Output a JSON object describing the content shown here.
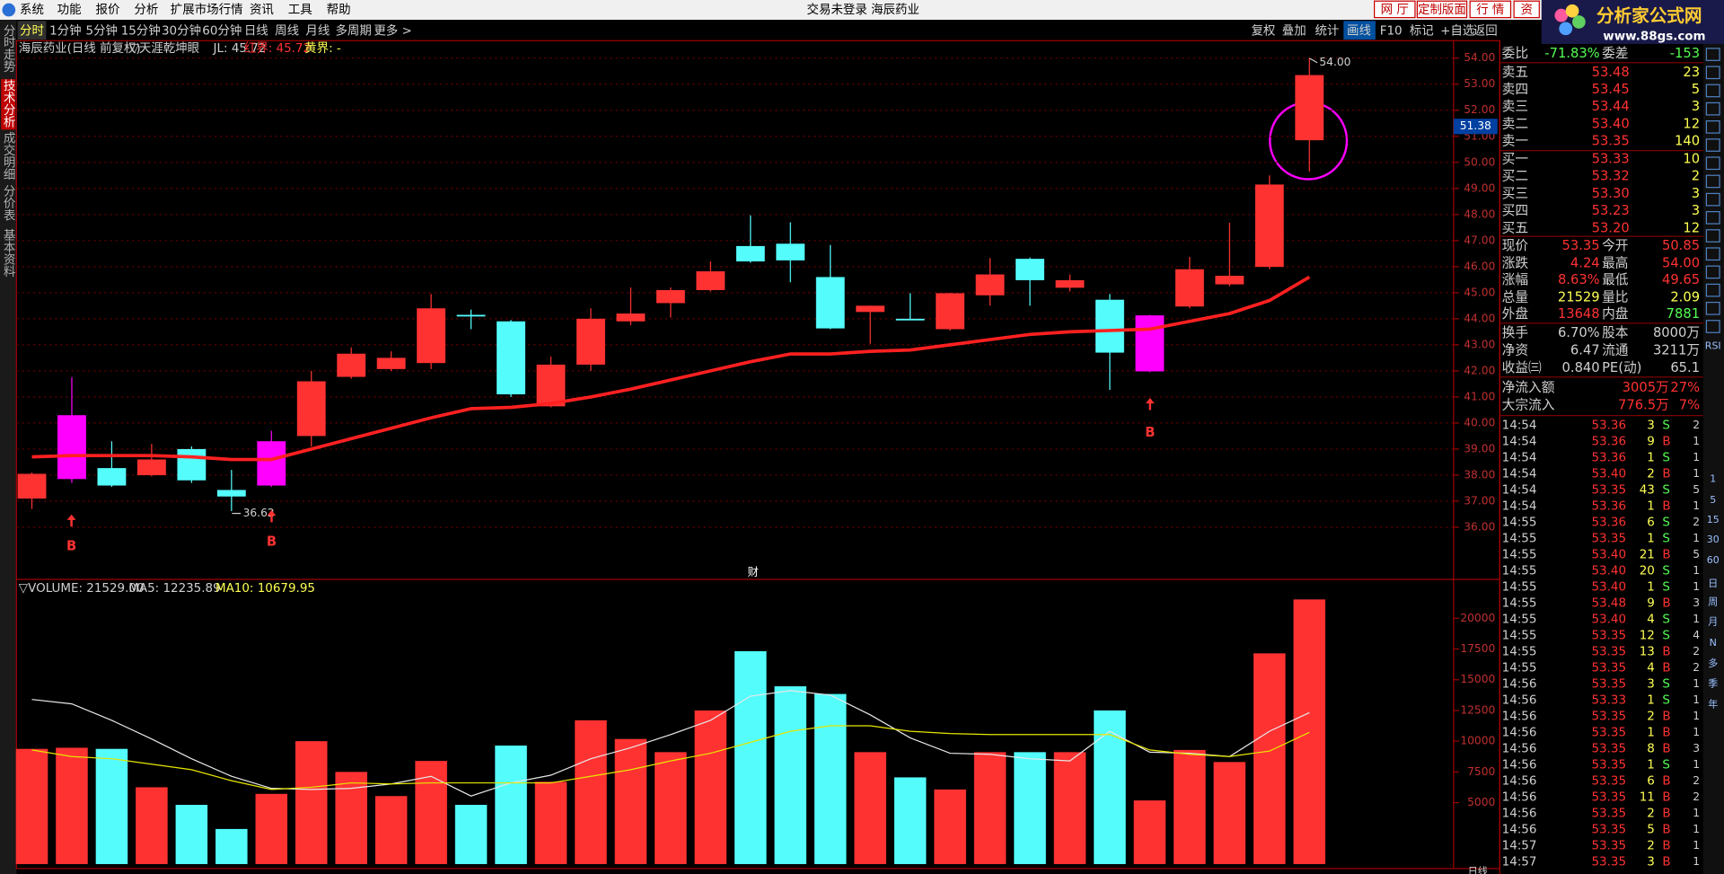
{
  "menu": [
    "系统",
    "功能",
    "报价",
    "分析",
    "扩展市场行情",
    "资讯",
    "工具",
    "帮助"
  ],
  "window_title": "交易未登录 海辰药业",
  "top_buttons": [
    "网 厅",
    "定制版面",
    "行 情",
    "资"
  ],
  "logo": {
    "text": "分析家公式网",
    "url": "www.88gs.com"
  },
  "period_tabs": [
    "分时",
    "1分钟",
    "5分钟",
    "15分钟",
    "30分钟",
    "60分钟",
    "日线",
    "周线",
    "月线",
    "多周期",
    "更多 >"
  ],
  "tool_buttons": [
    "复权",
    "叠加",
    "统计",
    "画线",
    "F10",
    "标记",
    "+自选",
    "返回"
  ],
  "left_tabs": [
    "分时走势",
    "技术分析",
    "成交明细",
    "分价表",
    "基本资料"
  ],
  "kline": {
    "header": [
      "海辰药业(日线 前复权)",
      "▽天涯乾坤眼",
      "JL: 45.72",
      "红界: 45.72",
      "黄界: -"
    ],
    "ylim": [
      34,
      54.67
    ],
    "yticks": [
      {
        "value": 54,
        "label": "54.00"
      },
      {
        "value": 53,
        "label": "53.00"
      },
      {
        "value": 52,
        "label": "52.00"
      },
      {
        "value": 51,
        "label": "51.00"
      },
      {
        "value": 50,
        "label": "50.00"
      },
      {
        "value": 49,
        "label": "49.00"
      },
      {
        "value": 48,
        "label": "48.00"
      },
      {
        "value": 47,
        "label": "47.00"
      },
      {
        "value": 46,
        "label": "46.00"
      },
      {
        "value": 45,
        "label": "45.00"
      },
      {
        "value": 44,
        "label": "44.00"
      },
      {
        "value": 43,
        "label": "43.00"
      },
      {
        "value": 42,
        "label": "42.00"
      },
      {
        "value": 41,
        "label": "41.00"
      },
      {
        "value": 40,
        "label": "40.00"
      },
      {
        "value": 39,
        "label": "39.00"
      },
      {
        "value": 38,
        "label": "38.00"
      },
      {
        "value": 37,
        "label": "37.00"
      },
      {
        "value": 36,
        "label": "36.00"
      }
    ],
    "cursor_price": {
      "value": 51.38,
      "label": "51.38"
    },
    "candles": [
      {
        "open": 37.1,
        "high": 38.1,
        "low": 36.7,
        "close": 38.05,
        "color": "#ff3232"
      },
      {
        "open": 37.85,
        "high": 41.75,
        "low": 37.7,
        "close": 40.3,
        "color": "#ff00ff"
      },
      {
        "open": 38.27,
        "high": 39.3,
        "low": 37.55,
        "close": 37.6,
        "color": "#54fcfc"
      },
      {
        "open": 38.0,
        "high": 39.2,
        "low": 37.95,
        "close": 38.6,
        "color": "#ff3232"
      },
      {
        "open": 39.0,
        "high": 39.1,
        "low": 37.7,
        "close": 37.8,
        "color": "#54fcfc"
      },
      {
        "open": 37.43,
        "high": 38.2,
        "low": 36.62,
        "close": 37.18,
        "color": "#54fcfc"
      },
      {
        "open": 37.6,
        "high": 39.7,
        "low": 37.55,
        "close": 39.3,
        "color": "#ff00ff"
      },
      {
        "open": 39.5,
        "high": 42.0,
        "low": 39.1,
        "close": 41.6,
        "color": "#ff3232"
      },
      {
        "open": 41.77,
        "high": 42.9,
        "low": 41.7,
        "close": 42.66,
        "color": "#ff3232"
      },
      {
        "open": 42.07,
        "high": 42.75,
        "low": 42.0,
        "close": 42.5,
        "color": "#ff3232"
      },
      {
        "open": 42.3,
        "high": 44.95,
        "low": 42.07,
        "close": 44.4,
        "color": "#ff3232"
      },
      {
        "open": 44.15,
        "high": 44.35,
        "low": 43.6,
        "close": 44.1,
        "color": "#54fcfc"
      },
      {
        "open": 43.9,
        "high": 43.95,
        "low": 41.0,
        "close": 41.1,
        "color": "#54fcfc"
      },
      {
        "open": 40.64,
        "high": 42.55,
        "low": 40.6,
        "close": 42.24,
        "color": "#ff3232"
      },
      {
        "open": 42.24,
        "high": 44.4,
        "low": 42.0,
        "close": 44.0,
        "color": "#ff3232"
      },
      {
        "open": 43.9,
        "high": 45.2,
        "low": 43.75,
        "close": 44.2,
        "color": "#ff3232"
      },
      {
        "open": 44.6,
        "high": 45.2,
        "low": 44.05,
        "close": 45.1,
        "color": "#ff3232"
      },
      {
        "open": 45.1,
        "high": 46.2,
        "low": 45.05,
        "close": 45.82,
        "color": "#ff3232"
      },
      {
        "open": 46.79,
        "high": 47.97,
        "low": 46.15,
        "close": 46.2,
        "color": "#54fcfc"
      },
      {
        "open": 46.88,
        "high": 47.7,
        "low": 45.4,
        "close": 46.24,
        "color": "#54fcfc"
      },
      {
        "open": 45.6,
        "high": 46.83,
        "low": 43.6,
        "close": 43.63,
        "color": "#54fcfc"
      },
      {
        "open": 44.26,
        "high": 44.5,
        "low": 43.04,
        "close": 44.5,
        "color": "#ff3232"
      },
      {
        "open": 44.0,
        "high": 44.98,
        "low": 43.95,
        "close": 43.97,
        "color": "#54fcfc"
      },
      {
        "open": 43.6,
        "high": 45.0,
        "low": 43.55,
        "close": 44.98,
        "color": "#ff3232"
      },
      {
        "open": 44.9,
        "high": 46.33,
        "low": 44.5,
        "close": 45.7,
        "color": "#ff3232"
      },
      {
        "open": 46.3,
        "high": 46.35,
        "low": 44.5,
        "close": 45.48,
        "color": "#54fcfc"
      },
      {
        "open": 45.19,
        "high": 45.7,
        "low": 45.05,
        "close": 45.48,
        "color": "#ff3232"
      },
      {
        "open": 44.73,
        "high": 44.95,
        "low": 41.27,
        "close": 42.7,
        "color": "#54fcfc"
      },
      {
        "open": 41.98,
        "high": 44.15,
        "low": 41.95,
        "close": 44.13,
        "color": "#ff00ff"
      },
      {
        "open": 44.47,
        "high": 46.37,
        "low": 44.4,
        "close": 45.9,
        "color": "#ff3232"
      },
      {
        "open": 45.32,
        "high": 47.68,
        "low": 45.25,
        "close": 45.65,
        "color": "#ff3232"
      },
      {
        "open": 45.99,
        "high": 49.5,
        "low": 45.9,
        "close": 49.15,
        "color": "#ff3232"
      },
      {
        "open": 50.85,
        "high": 54.0,
        "low": 49.65,
        "close": 53.35,
        "color": "#ff3232"
      }
    ],
    "ma_line": {
      "color": "#ff2020",
      "values": [
        38.7,
        38.75,
        38.75,
        38.75,
        38.7,
        38.6,
        38.6,
        39.0,
        39.4,
        39.8,
        40.2,
        40.55,
        40.6,
        40.75,
        41.0,
        41.3,
        41.65,
        42.0,
        42.35,
        42.65,
        42.65,
        42.75,
        42.8,
        43.0,
        43.2,
        43.4,
        43.5,
        43.55,
        43.6,
        43.9,
        44.2,
        44.7,
        45.6
      ]
    },
    "annotations": [
      "54.00",
      "36.62",
      "财"
    ],
    "signals": [
      "B",
      "B",
      "B"
    ]
  },
  "volume": {
    "header": [
      "▽VOLUME: 21529.00",
      "MA5: 12235.89",
      "MA10: 10679.95"
    ],
    "ylim": [
      0,
      22000
    ],
    "yticks": [
      20000,
      17500,
      15000,
      12500,
      10000,
      7500,
      5000
    ],
    "values": [
      9375,
      9464,
      9375,
      6250,
      4821,
      2857,
      5714,
      10000,
      7500,
      5536,
      8393,
      4821,
      9643,
      6696,
      11696,
      10179,
      9107,
      12500,
      17321,
      14464,
      13839,
      9107,
      7054,
      6071,
      9107,
      9107,
      9107,
      12500,
      5179,
      9286,
      8304,
      17143,
      21529
    ],
    "colors": [
      "#ff3232",
      "#ff3232",
      "#54fcfc",
      "#ff3232",
      "#54fcfc",
      "#54fcfc",
      "#ff3232",
      "#ff3232",
      "#ff3232",
      "#ff3232",
      "#ff3232",
      "#54fcfc",
      "#54fcfc",
      "#ff3232",
      "#ff3232",
      "#ff3232",
      "#ff3232",
      "#ff3232",
      "#54fcfc",
      "#54fcfc",
      "#54fcfc",
      "#ff3232",
      "#54fcfc",
      "#ff3232",
      "#ff3232",
      "#54fcfc",
      "#ff3232",
      "#54fcfc",
      "#ff3232",
      "#ff3232",
      "#ff3232",
      "#ff3232",
      "#ff3232"
    ],
    "ma5": {
      "color": "#e8e8e8",
      "values": [
        13393,
        13036,
        11696,
        10179,
        8571,
        7143,
        6161,
        6071,
        6161,
        6518,
        7143,
        5536,
        6607,
        7232,
        8571,
        9464,
        10536,
        11696,
        13661,
        14107,
        13750,
        12143,
        10268,
        9018,
        8929,
        8571,
        8393,
        10804,
        9107,
        9018,
        8750,
        10804,
        12321
      ]
    },
    "ma10": {
      "color": "#e6e600",
      "values": [
        9286,
        8750,
        8571,
        8125,
        7679,
        6786,
        6071,
        6250,
        6607,
        6518,
        6607,
        6607,
        6607,
        6607,
        7143,
        7679,
        8393,
        9018,
        9911,
        10804,
        11250,
        11250,
        10804,
        10625,
        10536,
        10536,
        10536,
        10536,
        9286,
        8929,
        8750,
        9196,
        10714
      ]
    }
  },
  "quote": {
    "ratio": [
      "委比",
      "-71.83%",
      "委差",
      "-153"
    ],
    "asks": [
      [
        "卖五",
        "53.48",
        "23"
      ],
      [
        "卖四",
        "53.45",
        "5"
      ],
      [
        "卖三",
        "53.44",
        "3"
      ],
      [
        "卖二",
        "53.40",
        "12"
      ],
      [
        "卖一",
        "53.35",
        "140"
      ]
    ],
    "bids": [
      [
        "买一",
        "53.33",
        "10"
      ],
      [
        "买二",
        "53.32",
        "2"
      ],
      [
        "买三",
        "53.30",
        "3"
      ],
      [
        "买四",
        "53.23",
        "3"
      ],
      [
        "买五",
        "53.20",
        "12"
      ]
    ],
    "stats": [
      [
        "现价",
        "53.35",
        "今开",
        "50.85"
      ],
      [
        "涨跌",
        "4.24",
        "最高",
        "54.00"
      ],
      [
        "涨幅",
        "8.63%",
        "最低",
        "49.65"
      ],
      [
        "总量",
        "21529",
        "量比",
        "2.09"
      ],
      [
        "外盘",
        "13648",
        "内盘",
        "7881"
      ],
      [
        "换手",
        "6.70%",
        "股本",
        "8000万"
      ],
      [
        "净资",
        "6.47",
        "流通",
        "3211万"
      ],
      [
        "收益㈢",
        "0.840",
        "PE(动)",
        "65.1"
      ]
    ],
    "flows": [
      [
        "净流入额",
        "3005万",
        "27%"
      ],
      [
        "大宗流入",
        "776.5万",
        "7%"
      ]
    ],
    "trades": [
      [
        "14:54",
        "53.36",
        "3",
        "S",
        "2"
      ],
      [
        "14:54",
        "53.36",
        "9",
        "B",
        "1"
      ],
      [
        "14:54",
        "53.36",
        "1",
        "S",
        "1"
      ],
      [
        "14:54",
        "53.40",
        "2",
        "B",
        "1"
      ],
      [
        "14:54",
        "53.35",
        "43",
        "S",
        "5"
      ],
      [
        "14:54",
        "53.36",
        "1",
        "B",
        "1"
      ],
      [
        "14:55",
        "53.36",
        "6",
        "S",
        "2"
      ],
      [
        "14:55",
        "53.35",
        "1",
        "S",
        "1"
      ],
      [
        "14:55",
        "53.40",
        "21",
        "B",
        "5"
      ],
      [
        "14:55",
        "53.40",
        "20",
        "S",
        "1"
      ],
      [
        "14:55",
        "53.40",
        "1",
        "S",
        "1"
      ],
      [
        "14:55",
        "53.48",
        "9",
        "B",
        "3"
      ],
      [
        "14:55",
        "53.40",
        "4",
        "S",
        "1"
      ],
      [
        "14:55",
        "53.35",
        "12",
        "S",
        "4"
      ],
      [
        "14:55",
        "53.35",
        "13",
        "B",
        "2"
      ],
      [
        "14:55",
        "53.35",
        "4",
        "B",
        "2"
      ],
      [
        "14:56",
        "53.35",
        "3",
        "S",
        "1"
      ],
      [
        "14:56",
        "53.33",
        "1",
        "S",
        "1"
      ],
      [
        "14:56",
        "53.35",
        "2",
        "B",
        "1"
      ],
      [
        "14:56",
        "53.35",
        "1",
        "B",
        "1"
      ],
      [
        "14:56",
        "53.35",
        "8",
        "B",
        "3"
      ],
      [
        "14:56",
        "53.35",
        "1",
        "S",
        "1"
      ],
      [
        "14:56",
        "53.35",
        "6",
        "B",
        "2"
      ],
      [
        "14:56",
        "53.35",
        "11",
        "B",
        "2"
      ],
      [
        "14:56",
        "53.35",
        "2",
        "B",
        "1"
      ],
      [
        "14:56",
        "53.35",
        "5",
        "B",
        "1"
      ],
      [
        "14:57",
        "53.35",
        "2",
        "B",
        "1"
      ],
      [
        "14:57",
        "53.35",
        "3",
        "B",
        "1"
      ]
    ]
  },
  "right_toolbar": [
    "RSI",
    "1",
    "5",
    "15",
    "30",
    "60",
    "日",
    "周",
    "月",
    "N",
    "多",
    "季",
    "年"
  ],
  "status": "日线"
}
